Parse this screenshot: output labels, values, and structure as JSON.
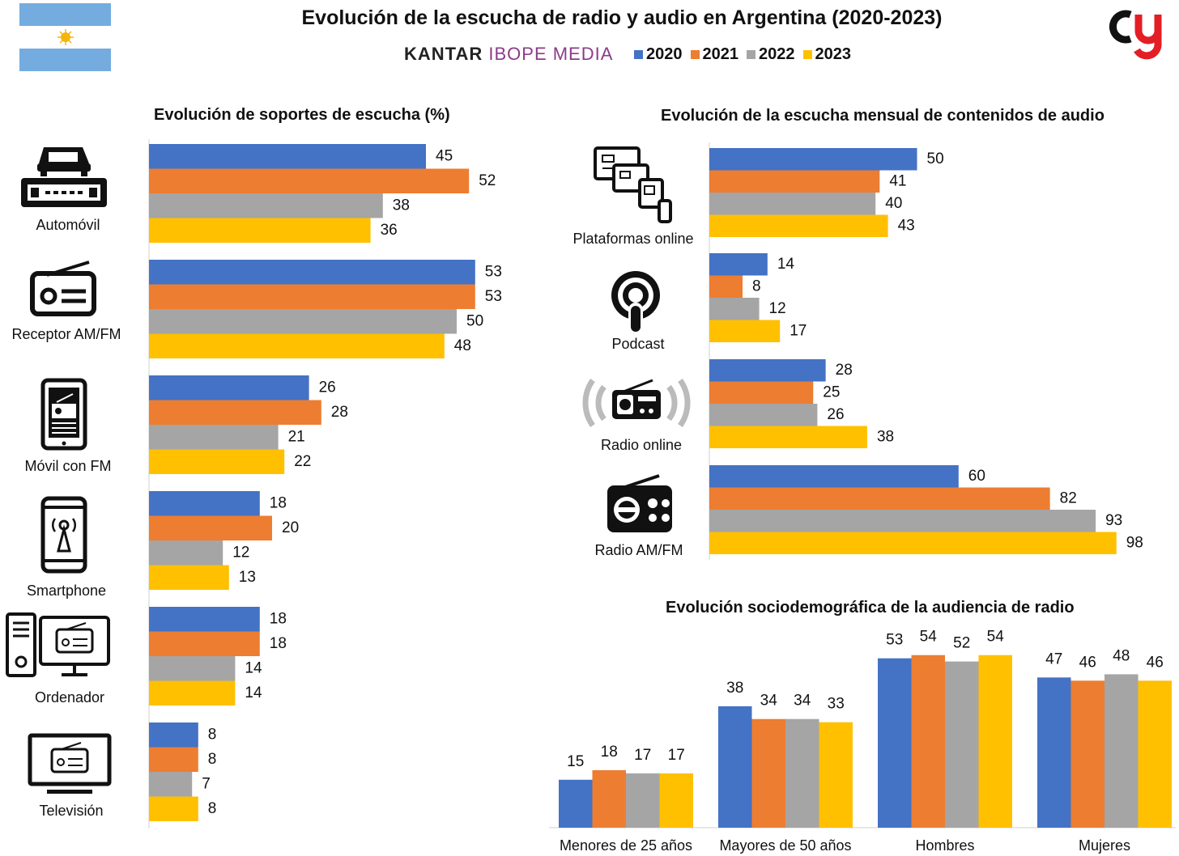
{
  "header": {
    "title": "Evolución de la escucha de radio y audio en Argentina (2020-2023)",
    "brand_left": "KANTAR",
    "brand_right": "IBOPE MEDIA"
  },
  "legend": [
    {
      "label": "2020",
      "color": "#4472C4"
    },
    {
      "label": "2021",
      "color": "#ED7D31"
    },
    {
      "label": "2022",
      "color": "#A5A5A5"
    },
    {
      "label": "2023",
      "color": "#FFC000"
    }
  ],
  "icons": {
    "flag": "argentina-flag-icon",
    "logo": "brand-logo-icon",
    "automovil": "car-radio-icon",
    "receptor": "radio-receiver-icon",
    "movil": "mobile-radio-icon",
    "smartphone": "smartphone-antenna-icon",
    "ordenador": "computer-radio-icon",
    "television": "tv-radio-icon",
    "plataformas": "online-devices-icon",
    "podcast": "podcast-icon",
    "radio_online": "radio-online-icon",
    "radio_amfm": "radio-amfm-icon"
  },
  "chart_data": [
    {
      "type": "bar",
      "orientation": "horizontal",
      "title": "Evolución de soportes de escucha (%)",
      "categories": [
        "Automóvil",
        "Receptor AM/FM",
        "Móvil con FM",
        "Smartphone",
        "Ordenador",
        "Televisión"
      ],
      "series": [
        {
          "name": "2020",
          "values": [
            45,
            53,
            26,
            18,
            18,
            8
          ]
        },
        {
          "name": "2021",
          "values": [
            52,
            53,
            28,
            20,
            18,
            8
          ]
        },
        {
          "name": "2022",
          "values": [
            38,
            50,
            21,
            12,
            14,
            7
          ]
        },
        {
          "name": "2023",
          "values": [
            36,
            48,
            22,
            13,
            14,
            8
          ]
        }
      ],
      "xlim": [
        0,
        100
      ],
      "grid": false,
      "legend": "top"
    },
    {
      "type": "bar",
      "orientation": "horizontal",
      "title": "Evolución de la escucha mensual de contenidos de audio",
      "categories": [
        "Plataformas online",
        "Podcast",
        "Radio online",
        "Radio AM/FM"
      ],
      "series": [
        {
          "name": "2020",
          "values": [
            50,
            14,
            28,
            60
          ]
        },
        {
          "name": "2021",
          "values": [
            41,
            8,
            25,
            82
          ]
        },
        {
          "name": "2022",
          "values": [
            40,
            12,
            26,
            93
          ]
        },
        {
          "name": "2023",
          "values": [
            43,
            17,
            38,
            98
          ]
        }
      ],
      "xlim": [
        0,
        100
      ],
      "grid": false,
      "legend": "top"
    },
    {
      "type": "bar",
      "orientation": "vertical",
      "title": "Evolución sociodemográfica de la audiencia de radio",
      "categories": [
        "Menores de 25 años",
        "Mayores de 50 años",
        "Hombres",
        "Mujeres"
      ],
      "series": [
        {
          "name": "2020",
          "values": [
            15,
            38,
            53,
            47
          ]
        },
        {
          "name": "2021",
          "values": [
            18,
            34,
            54,
            46
          ]
        },
        {
          "name": "2022",
          "values": [
            17,
            34,
            52,
            48
          ]
        },
        {
          "name": "2023",
          "values": [
            17,
            33,
            54,
            46
          ]
        }
      ],
      "ylim": [
        0,
        60
      ],
      "grid": false,
      "legend": "top"
    }
  ]
}
